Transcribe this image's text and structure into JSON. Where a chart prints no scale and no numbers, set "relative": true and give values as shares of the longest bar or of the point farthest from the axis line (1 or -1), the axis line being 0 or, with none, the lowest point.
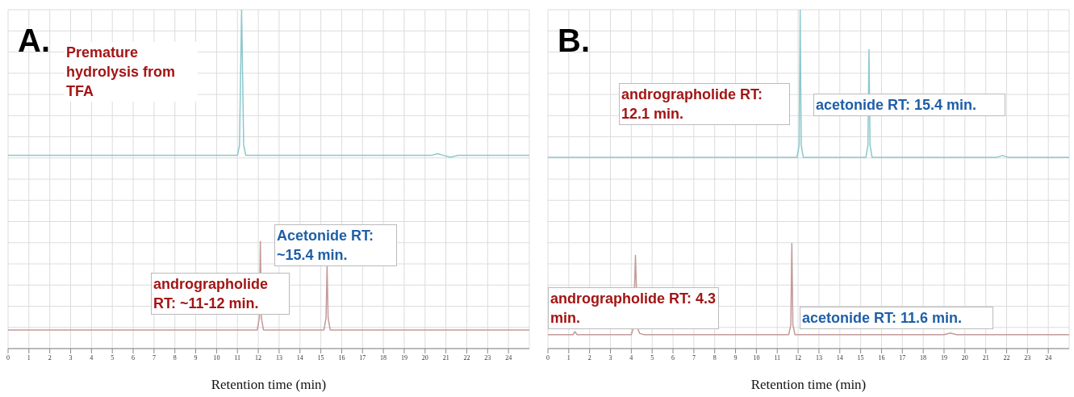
{
  "chart_data": [
    {
      "type": "line",
      "title": "A.",
      "xlabel": "Retention time (min)",
      "relative": true,
      "grid": true,
      "marker": "none",
      "xlim": [
        0,
        25
      ],
      "xticks": [
        0,
        1,
        2,
        3,
        4,
        5,
        6,
        7,
        8,
        9,
        10,
        11,
        12,
        13,
        14,
        15,
        16,
        17,
        18,
        19,
        20,
        21,
        22,
        23,
        24
      ],
      "series": [
        {
          "color": "#8cc8cc",
          "x": [
            0,
            11.0,
            11.1,
            11.2,
            11.3,
            11.4,
            20.3,
            20.6,
            20.9,
            21.2,
            21.6,
            25
          ],
          "values": [
            0.57,
            0.57,
            0.6,
            1,
            0.6,
            0.57,
            0.57,
            0.575,
            0.57,
            0.565,
            0.57,
            0.57
          ]
        },
        {
          "color": "#c49a9a",
          "x": [
            0,
            11.95,
            12.05,
            12.1,
            12.15,
            12.25,
            15.15,
            15.25,
            15.3,
            15.35,
            15.45,
            25
          ],
          "values": [
            0.055,
            0.055,
            0.09,
            0.316,
            0.09,
            0.055,
            0.055,
            0.09,
            0.246,
            0.09,
            0.055,
            0.055
          ]
        }
      ],
      "annotations": [
        "Premature hydrolysis from TFA",
        "Acetonide RT: ~15.4 min.",
        "andrographolide RT: ~11-12 min."
      ]
    },
    {
      "type": "line",
      "title": "B.",
      "xlabel": "Retention time (min)",
      "relative": true,
      "grid": true,
      "marker": "none",
      "xlim": [
        0,
        25
      ],
      "xticks": [
        0,
        1,
        2,
        3,
        4,
        5,
        6,
        7,
        8,
        9,
        10,
        11,
        12,
        13,
        14,
        15,
        16,
        17,
        18,
        19,
        20,
        21,
        22,
        23,
        24
      ],
      "series": [
        {
          "color": "#8cc8cc",
          "x": [
            0,
            11.95,
            12.05,
            12.1,
            12.15,
            12.25,
            15.25,
            15.35,
            15.4,
            15.45,
            15.55,
            21.5,
            21.8,
            22.1,
            25
          ],
          "values": [
            0.564,
            0.564,
            0.6,
            1,
            0.6,
            0.564,
            0.564,
            0.6,
            0.882,
            0.6,
            0.564,
            0.564,
            0.57,
            0.564,
            0.564
          ]
        },
        {
          "color": "#c49a9a",
          "x": [
            0,
            1.2,
            1.3,
            1.4,
            4.0,
            4.1,
            4.2,
            4.3,
            4.4,
            4.6,
            11.55,
            11.65,
            11.7,
            11.75,
            11.85,
            19,
            19.3,
            19.6,
            25
          ],
          "values": [
            0.041,
            0.041,
            0.05,
            0.041,
            0.041,
            0.06,
            0.275,
            0.06,
            0.045,
            0.041,
            0.041,
            0.07,
            0.31,
            0.07,
            0.041,
            0.041,
            0.046,
            0.041,
            0.041
          ]
        }
      ],
      "annotations": [
        "andrographolide RT: 12.1 min.",
        "acetonide RT: 15.4 min.",
        "andrographolide RT: 4.3 min.",
        "acetonide RT: 11.6 min."
      ]
    }
  ]
}
